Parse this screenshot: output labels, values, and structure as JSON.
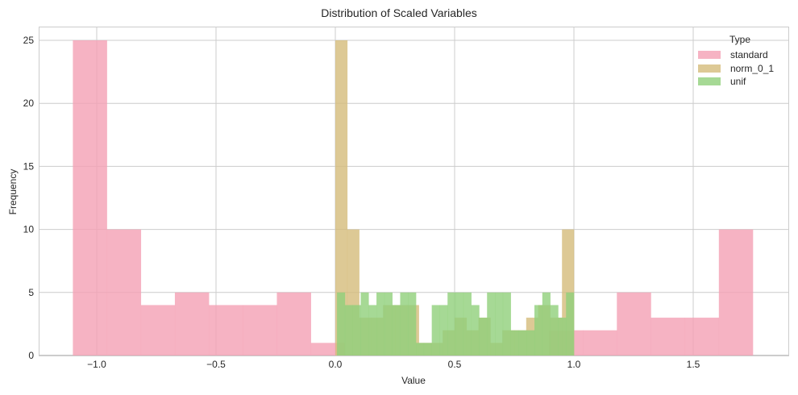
{
  "chart_data": {
    "type": "bar",
    "subtype": "overlaid-histogram",
    "title": "Distribution of Scaled Variables",
    "xlabel": "Value",
    "ylabel": "Frequency",
    "xlim": [
      -1.24,
      1.89
    ],
    "ylim": [
      0,
      26.3
    ],
    "xticks": [
      -1.0,
      -0.5,
      0.0,
      0.5,
      1.0,
      1.5
    ],
    "xtick_labels": [
      "−1.0",
      "−0.5",
      "0.0",
      "0.5",
      "1.0",
      "1.5"
    ],
    "yticks": [
      0,
      5,
      10,
      15,
      20,
      25
    ],
    "ytick_labels": [
      "0",
      "5",
      "10",
      "15",
      "20",
      "25"
    ],
    "grid": true,
    "legend": {
      "title": "Type",
      "position": "upper right"
    },
    "series": [
      {
        "name": "standard",
        "color": "#f4a0b4",
        "alpha": 0.8,
        "bin_start": -1.1,
        "bin_width": 0.1425,
        "values": [
          25,
          10,
          4,
          5,
          4,
          4,
          5,
          1,
          0,
          0,
          0,
          0,
          0,
          0,
          2,
          2,
          5,
          3,
          3,
          10
        ]
      },
      {
        "name": "norm_0_1",
        "color": "#d4bb7a",
        "alpha": 0.8,
        "bin_start": 0.0,
        "bin_width": 0.05,
        "values": [
          25,
          10,
          3,
          3,
          4,
          4,
          4,
          1,
          1,
          2,
          3,
          2,
          3,
          1,
          2,
          2,
          3,
          4,
          3,
          10
        ]
      },
      {
        "name": "unif",
        "color": "#90cf7a",
        "alpha": 0.8,
        "bin_start": 0.007,
        "bin_width": 0.0331,
        "values": [
          5,
          4,
          4,
          5,
          4,
          5,
          5,
          4,
          5,
          5,
          1,
          1,
          4,
          4,
          5,
          5,
          5,
          4,
          3,
          5,
          5,
          5,
          2,
          2,
          2,
          4,
          5,
          4,
          3,
          5
        ]
      }
    ]
  }
}
